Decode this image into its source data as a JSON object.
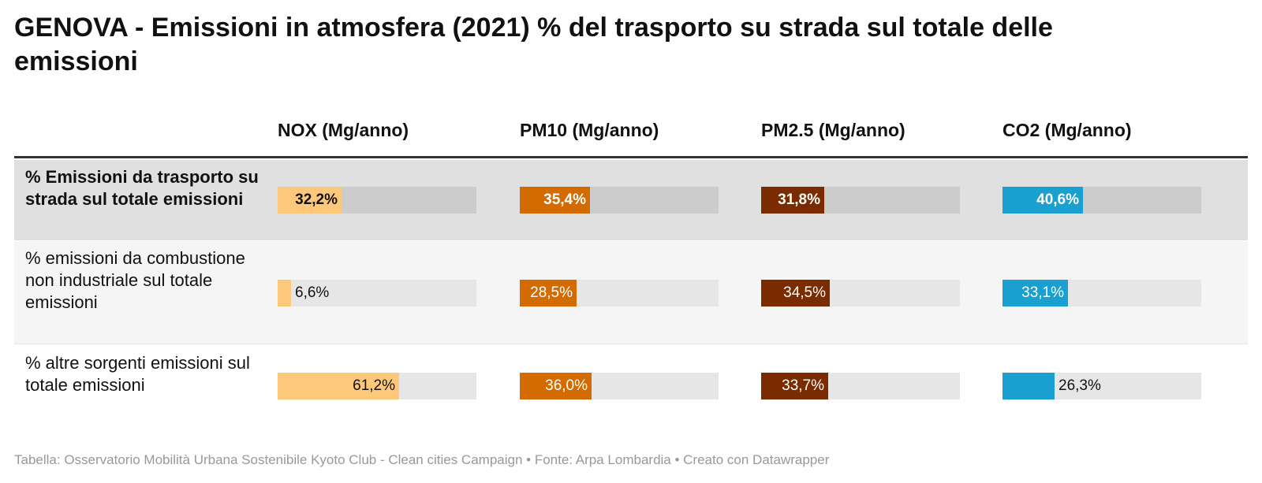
{
  "title": "GENOVA - Emissioni in atmosfera (2021) % del trasporto su strada sul totale delle emissioni",
  "footer": "Tabella: Osservatorio Mobilità Urbana Sostenibile Kyoto Club - Clean cities Campaign • Fonte: Arpa Lombardia • Creato con Datawrapper",
  "chart_data": {
    "type": "table",
    "title": "GENOVA - Emissioni in atmosfera (2021) % del trasporto su strada sul totale delle emissioni",
    "columns": [
      "NOX (Mg/anno)",
      "PM10 (Mg/anno)",
      "PM2.5 (Mg/anno)",
      "CO2 (Mg/anno)"
    ],
    "column_colors": [
      "#fdc87a",
      "#d36b00",
      "#7b2b00",
      "#1aa0d0"
    ],
    "scale_max": 100,
    "rows": [
      {
        "label": "% Emissioni da trasporto su strada sul totale emissioni",
        "values": [
          32.2,
          35.4,
          31.8,
          40.6
        ],
        "display": [
          "32,2%",
          "35,4%",
          "31,8%",
          "40,6%"
        ],
        "highlighted": true
      },
      {
        "label": "% emissioni da combustione non industriale sul totale emissioni",
        "values": [
          6.6,
          28.5,
          34.5,
          33.1
        ],
        "display": [
          "6,6%",
          "28,5%",
          "34,5%",
          "33,1%"
        ],
        "highlighted": false
      },
      {
        "label": "% altre sorgenti emissioni sul totale emissioni",
        "values": [
          61.2,
          36.0,
          33.7,
          26.3
        ],
        "display": [
          "61,2%",
          "36,0%",
          "33,7%",
          "26,3%"
        ],
        "highlighted": false
      }
    ]
  }
}
